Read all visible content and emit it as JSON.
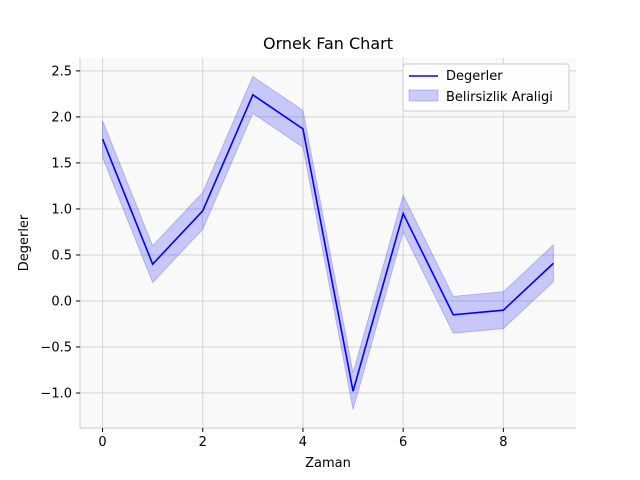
{
  "chart_data": {
    "type": "line",
    "title": "Ornek Fan Chart",
    "xlabel": "Zaman",
    "ylabel": "Degerler",
    "x": [
      0,
      1,
      2,
      3,
      4,
      5,
      6,
      7,
      8,
      9
    ],
    "series": [
      {
        "name": "Degerler",
        "values": [
          1.76,
          0.4,
          0.98,
          2.24,
          1.87,
          -0.98,
          0.95,
          -0.15,
          -0.1,
          0.41
        ],
        "color": "#0000ff"
      }
    ],
    "band": {
      "name": "Belirsizlik Araligi",
      "lower": [
        1.56,
        0.2,
        0.78,
        2.04,
        1.67,
        -1.18,
        0.75,
        -0.35,
        -0.3,
        0.21
      ],
      "upper": [
        1.96,
        0.6,
        1.18,
        2.44,
        2.07,
        -0.78,
        1.15,
        0.05,
        0.1,
        0.61
      ],
      "color": "#0000ff",
      "alpha": 0.2
    },
    "xlim": [
      -0.45,
      9.45
    ],
    "ylim": [
      -1.38,
      2.64
    ],
    "xticks": [
      0,
      2,
      4,
      6,
      8
    ],
    "xtick_labels": [
      "0",
      "2",
      "4",
      "6",
      "8"
    ],
    "yticks": [
      -1.0,
      -0.5,
      0.0,
      0.5,
      1.0,
      1.5,
      2.0,
      2.5
    ],
    "ytick_labels": [
      "−1.0",
      "−0.5",
      "0.0",
      "0.5",
      "1.0",
      "1.5",
      "2.0",
      "2.5"
    ],
    "grid": true,
    "legend_position": "top-right",
    "background": "#f9f9f9"
  }
}
